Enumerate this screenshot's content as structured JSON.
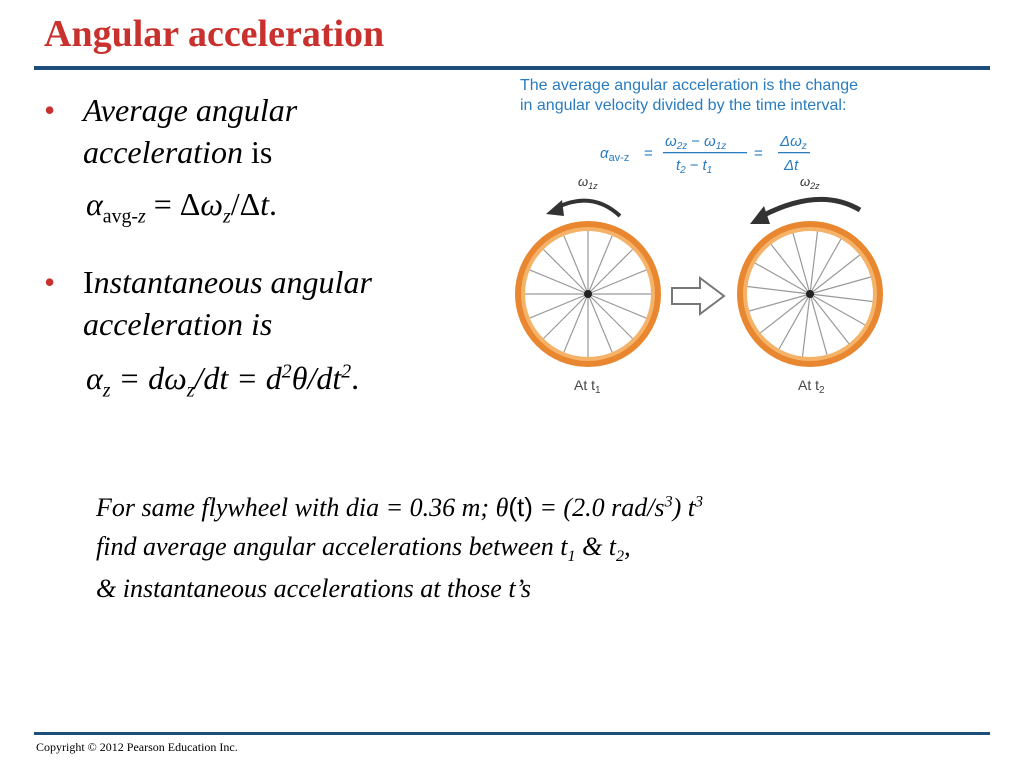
{
  "slide": {
    "title": "Angular acceleration",
    "footer": "Copyright © 2012 Pearson Education Inc."
  },
  "bullets": [
    {
      "line1": "Average angular",
      "line2_italic": "acceleration",
      "line2_rest": " is",
      "formula": {
        "alpha": "α",
        "sub": "avg-",
        "sub_z": "z",
        "equals": " = Δ",
        "omega": "ω",
        "omega_sub": "z",
        "rest": "/Δ",
        "t": "t",
        "end": "."
      }
    },
    {
      "line1_first": "I",
      "line1_rest": "nstantaneous angular",
      "line2": "acceleration is",
      "formula": {
        "alpha": "α",
        "sub": "z",
        "p1": " = d",
        "omega": "ω",
        "omega_sub": "z",
        "p2": "/dt = d",
        "sup1": "2",
        "theta": "θ",
        "p3": "/dt",
        "sup2": "2",
        "end": "."
      }
    }
  ],
  "figure": {
    "caption_line1": "The average angular acceleration is the change",
    "caption_line2": "in angular velocity divided by the time interval:",
    "eq_alpha": "α",
    "eq_alpha_sub": "av-z",
    "eq_equals1": "=",
    "eq_num1": "ω",
    "eq_num1_sub": "2z",
    "eq_minus1": "−",
    "eq_num2": "ω",
    "eq_num2_sub": "1z",
    "eq_den1": "t",
    "eq_den1_sub": "2",
    "eq_minus2": "−",
    "eq_den2": "t",
    "eq_den2_sub": "1",
    "eq_equals2": "=",
    "eq_num3": "Δω",
    "eq_num3_sub": "z",
    "eq_den3": "Δt",
    "omega1_label": "ω",
    "omega1_sub": "1z",
    "omega2_label": "ω",
    "omega2_sub": "2z",
    "at1": "At t",
    "at1_sub": "1",
    "at2": "At t",
    "at2_sub": "2",
    "colors": {
      "tire": "#e8872f",
      "rim": "#f5b36a",
      "spoke": "#9a9a9a",
      "arrow": "#333333",
      "caption": "#2a7cc0"
    }
  },
  "problem": {
    "l1_a": "For same flywheel with dia = 0.36 m; ",
    "l1_theta": "θ",
    "l1_b": "(t)",
    "l1_c": " = (2.0 rad/s",
    "l1_sup": "3",
    "l1_d": ") t",
    "l1_sup2": "3",
    "l2_a": "find average angular accelerations between t",
    "l2_sub1": "1",
    "l2_b": " & t",
    "l2_sub2": "2",
    "l2_c": ",",
    "l3": "& instantaneous accelerations at those t’s"
  }
}
